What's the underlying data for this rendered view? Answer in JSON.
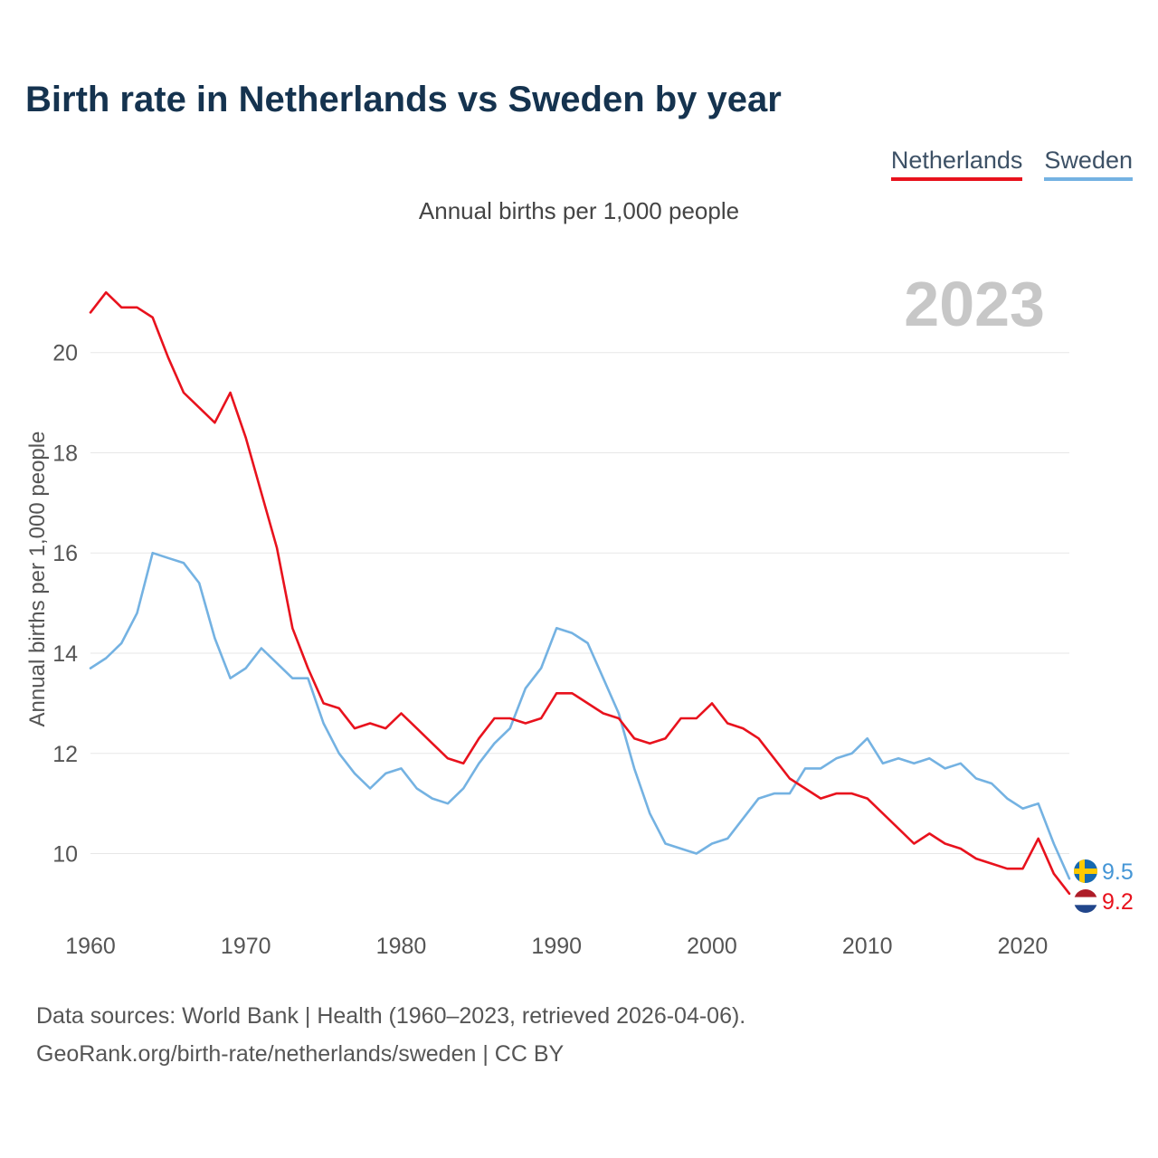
{
  "title": "Birth rate in Netherlands vs Sweden by year",
  "subtitle": "Annual births per 1,000 people",
  "watermark": "2023",
  "legend": {
    "netherlands": {
      "label": "Netherlands",
      "color": "#e8121d"
    },
    "sweden": {
      "label": "Sweden",
      "color": "#74b2e2"
    }
  },
  "y_axis_label": "Annual births per 1,000 people",
  "end_labels": {
    "sweden": "9.5",
    "netherlands": "9.2"
  },
  "footer": {
    "line1": "Data sources: World Bank | Health (1960–2023, retrieved 2026-04-06).",
    "line2": "GeoRank.org/birth-rate/netherlands/sweden | CC BY"
  },
  "chart_data": {
    "type": "line",
    "title": "Birth rate in Netherlands vs Sweden by year",
    "subtitle": "Annual births per 1,000 people",
    "ylabel": "Annual births per 1,000 people",
    "xlabel": "",
    "x_start": 1960,
    "x_end": 2023,
    "x_ticks": [
      1960,
      1970,
      1980,
      1990,
      2000,
      2010,
      2020
    ],
    "y_ticks": [
      10,
      12,
      14,
      16,
      18,
      20
    ],
    "ylim": [
      8.8,
      21.8
    ],
    "grid": "horizontal",
    "legend_position": "top-right",
    "series": [
      {
        "name": "Netherlands",
        "color": "#e8121d",
        "values": [
          20.8,
          21.2,
          20.9,
          20.9,
          20.7,
          19.9,
          19.2,
          18.9,
          18.6,
          19.2,
          18.3,
          17.2,
          16.1,
          14.5,
          13.7,
          13.0,
          12.9,
          12.5,
          12.6,
          12.5,
          12.8,
          12.5,
          12.2,
          11.9,
          11.8,
          12.3,
          12.7,
          12.7,
          12.6,
          12.7,
          13.2,
          13.2,
          13.0,
          12.8,
          12.7,
          12.3,
          12.2,
          12.3,
          12.7,
          12.7,
          13.0,
          12.6,
          12.5,
          12.3,
          11.9,
          11.5,
          11.3,
          11.1,
          11.2,
          11.2,
          11.1,
          10.8,
          10.5,
          10.2,
          10.4,
          10.2,
          10.1,
          9.9,
          9.8,
          9.7,
          9.7,
          10.3,
          9.6,
          9.2
        ]
      },
      {
        "name": "Sweden",
        "color": "#74b2e2",
        "values": [
          13.7,
          13.9,
          14.2,
          14.8,
          16.0,
          15.9,
          15.8,
          15.4,
          14.3,
          13.5,
          13.7,
          14.1,
          13.8,
          13.5,
          13.5,
          12.6,
          12.0,
          11.6,
          11.3,
          11.6,
          11.7,
          11.3,
          11.1,
          11.0,
          11.3,
          11.8,
          12.2,
          12.5,
          13.3,
          13.7,
          14.5,
          14.4,
          14.2,
          13.5,
          12.8,
          11.7,
          10.8,
          10.2,
          10.1,
          10.0,
          10.2,
          10.3,
          10.7,
          11.1,
          11.2,
          11.2,
          11.7,
          11.7,
          11.9,
          12.0,
          12.3,
          11.8,
          11.9,
          11.8,
          11.9,
          11.7,
          11.8,
          11.5,
          11.4,
          11.1,
          10.9,
          11.0,
          10.2,
          9.5
        ]
      }
    ]
  }
}
